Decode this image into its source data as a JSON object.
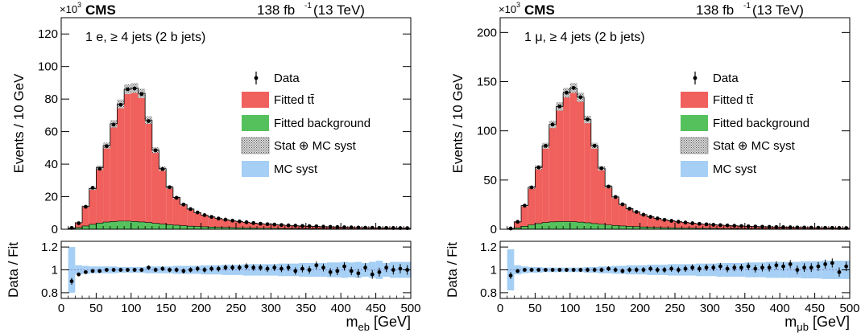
{
  "colors": {
    "signal": "#f0605c",
    "background": "#55c15c",
    "mc_syst": "#a5cff5",
    "stat_hatch": "#555555"
  },
  "chart_data": [
    {
      "type": "bar",
      "experiment": "CMS",
      "lumi": "138 fb",
      "lumi_sup": "-1",
      "energy": " (13 TeV)",
      "exponent_base": "×10",
      "exponent_sup": "3",
      "channel": "1 e, ≥ 4 jets (2 b jets)",
      "ylabel": "Events / 10 GeV",
      "ratio_ylabel": "Data / Fit",
      "xlabel_main": "m",
      "xlabel_sub": "eb",
      "xlabel_unit": " [GeV]",
      "xlim": [
        0,
        500
      ],
      "ylim": [
        0,
        130
      ],
      "yticks": [
        "0",
        "20",
        "40",
        "60",
        "80",
        "100",
        "120"
      ],
      "yticks_values": [
        0,
        20,
        40,
        60,
        80,
        100,
        120
      ],
      "xticks": [
        "0",
        "50",
        "100",
        "150",
        "200",
        "250",
        "300",
        "350",
        "400",
        "450",
        "500"
      ],
      "ratio_ylim": [
        0.75,
        1.25
      ],
      "ratio_yticks": [
        "0.8",
        "1",
        "1.2"
      ],
      "ratio_yticks_values": [
        0.8,
        1.0,
        1.2
      ],
      "legend": [
        "Data",
        "Fitted tt̄",
        "Fitted background",
        "Stat  ⊕ MC syst",
        "MC syst"
      ],
      "bin_low_edges": [
        0,
        10,
        20,
        30,
        40,
        50,
        60,
        70,
        80,
        90,
        100,
        110,
        120,
        130,
        140,
        150,
        160,
        170,
        180,
        190,
        200,
        210,
        220,
        230,
        240,
        250,
        260,
        270,
        280,
        290,
        300,
        310,
        320,
        330,
        340,
        350,
        360,
        370,
        380,
        390,
        400,
        410,
        420,
        430,
        440,
        450,
        460,
        470,
        480,
        490
      ],
      "signal": [
        0,
        0.5,
        3,
        12,
        22,
        34,
        47,
        60,
        72,
        81,
        82,
        79,
        63,
        45,
        34,
        23,
        17,
        13,
        10.5,
        8.5,
        7.2,
        6.2,
        5.4,
        4.8,
        4.2,
        3.8,
        3.4,
        3.0,
        2.7,
        2.5,
        2.25,
        2.05,
        1.85,
        1.7,
        1.55,
        1.45,
        1.35,
        1.25,
        1.15,
        1.05,
        0.98,
        0.9,
        0.84,
        0.78,
        0.72,
        0.66,
        0.62,
        0.58,
        0.55,
        0.52
      ],
      "background": [
        0,
        0.3,
        1.0,
        2.0,
        3.0,
        3.8,
        4.4,
        4.8,
        5.0,
        5.0,
        4.8,
        4.5,
        4.1,
        3.6,
        3.2,
        2.8,
        2.5,
        2.2,
        1.9,
        1.7,
        1.5,
        1.35,
        1.2,
        1.1,
        1.0,
        0.9,
        0.82,
        0.75,
        0.68,
        0.62,
        0.56,
        0.52,
        0.48,
        0.44,
        0.4,
        0.37,
        0.34,
        0.31,
        0.29,
        0.27,
        0.25,
        0.23,
        0.21,
        0.2,
        0.19,
        0.18,
        0.17,
        0.16,
        0.15,
        0.14
      ],
      "data": [
        null,
        0.8,
        3.7,
        13.8,
        25.5,
        37.2,
        51,
        64.3,
        76.5,
        86,
        86.5,
        83,
        66.5,
        48.5,
        37,
        25.8,
        19.3,
        15.2,
        12.4,
        10.3,
        8.7,
        7.6,
        6.6,
        5.9,
        5.3,
        4.8,
        4.3,
        3.8,
        3.4,
        3.1,
        2.9,
        2.6,
        2.4,
        2.2,
        2.0,
        1.9,
        1.8,
        1.6,
        1.5,
        1.35,
        1.25,
        1.15,
        1.05,
        0.98,
        0.92,
        0.86,
        0.82,
        0.78,
        0.73,
        0.68
      ],
      "ratio": [
        null,
        0.9,
        0.96,
        0.98,
        0.99,
        0.99,
        1.0,
        1.0,
        1.0,
        1.0,
        1.0,
        1.0,
        1.02,
        1.0,
        1.01,
        1.0,
        1.0,
        0.99,
        1.0,
        1.01,
        1.0,
        1.01,
        1.01,
        1.02,
        1.02,
        1.02,
        1.03,
        1.02,
        1.02,
        1.01,
        1.02,
        1.01,
        1.02,
        0.99,
        1.01,
        1.0,
        1.04,
        1.02,
        0.98,
        0.99,
        1.03,
        0.99,
        0.97,
        1.02,
        0.96,
        0.98,
        1.02,
        1.0,
        1.01,
        1.0
      ],
      "mc_syst_band": [
        0,
        0.2,
        0.04,
        0.035,
        0.03,
        0.03,
        0.03,
        0.03,
        0.025,
        0.025,
        0.025,
        0.025,
        0.03,
        0.03,
        0.03,
        0.03,
        0.035,
        0.035,
        0.035,
        0.035,
        0.04,
        0.04,
        0.04,
        0.045,
        0.045,
        0.045,
        0.05,
        0.05,
        0.05,
        0.05,
        0.05,
        0.055,
        0.055,
        0.055,
        0.06,
        0.06,
        0.06,
        0.06,
        0.065,
        0.065,
        0.07,
        0.065,
        0.07,
        0.06,
        0.07,
        0.08,
        0.06,
        0.07,
        0.07,
        0.07
      ]
    },
    {
      "type": "bar",
      "experiment": "CMS",
      "lumi": "138 fb",
      "lumi_sup": "-1",
      "energy": " (13 TeV)",
      "exponent_base": "×10",
      "exponent_sup": "3",
      "channel": "1 μ, ≥ 4 jets (2 b jets)",
      "ylabel": "Events / 10 GeV",
      "ratio_ylabel": "Data / Fit",
      "xlabel_main": "m",
      "xlabel_sub": "μb",
      "xlabel_unit": " [GeV]",
      "xlim": [
        0,
        500
      ],
      "ylim": [
        0,
        215
      ],
      "yticks": [
        "0",
        "50",
        "100",
        "150",
        "200"
      ],
      "yticks_values": [
        0,
        50,
        100,
        150,
        200
      ],
      "xticks": [
        "0",
        "50",
        "100",
        "150",
        "200",
        "250",
        "300",
        "350",
        "400",
        "450",
        "500"
      ],
      "ratio_ylim": [
        0.75,
        1.25
      ],
      "ratio_yticks": [
        "0.8",
        "1",
        "1.2"
      ],
      "ratio_yticks_values": [
        0.8,
        1.0,
        1.2
      ],
      "legend": [
        "Data",
        "Fitted tt̄",
        "Fitted background",
        "Stat  ⊕ MC syst",
        "MC syst"
      ],
      "bin_low_edges": [
        0,
        10,
        20,
        30,
        40,
        50,
        60,
        70,
        80,
        90,
        100,
        110,
        120,
        130,
        140,
        150,
        160,
        170,
        180,
        190,
        200,
        210,
        220,
        230,
        240,
        250,
        260,
        270,
        280,
        290,
        300,
        310,
        320,
        330,
        340,
        350,
        360,
        370,
        380,
        390,
        400,
        410,
        420,
        430,
        440,
        450,
        460,
        470,
        480,
        490
      ],
      "signal": [
        0,
        0.5,
        6,
        21,
        38,
        57,
        78,
        99,
        117,
        131,
        136,
        127,
        105,
        79,
        57,
        39,
        29,
        22,
        18,
        15,
        12.5,
        10.6,
        9.2,
        8.0,
        7.1,
        6.3,
        5.6,
        5.0,
        4.5,
        4.1,
        3.7,
        3.4,
        3.1,
        2.85,
        2.6,
        2.4,
        2.25,
        2.1,
        1.95,
        1.8,
        1.7,
        1.6,
        1.5,
        1.4,
        1.32,
        1.25,
        1.18,
        1.12,
        1.06,
        1.0
      ],
      "background": [
        0,
        0.3,
        1.5,
        3.0,
        4.5,
        5.8,
        6.8,
        7.5,
        7.8,
        7.8,
        7.6,
        7.2,
        6.6,
        5.8,
        5.0,
        4.4,
        3.8,
        3.3,
        2.9,
        2.6,
        2.3,
        2.0,
        1.8,
        1.6,
        1.45,
        1.3,
        1.2,
        1.1,
        1.0,
        0.9,
        0.85,
        0.78,
        0.72,
        0.66,
        0.6,
        0.56,
        0.52,
        0.48,
        0.45,
        0.42,
        0.4,
        0.38,
        0.36,
        0.34,
        0.32,
        0.3,
        0.28,
        0.27,
        0.26,
        0.25
      ],
      "data": [
        null,
        0.8,
        7.5,
        24,
        42.5,
        62.8,
        84.8,
        106.5,
        124.8,
        138.8,
        143.6,
        134.2,
        111.6,
        84.8,
        62,
        43.4,
        32.8,
        25.3,
        20.9,
        17.6,
        14.8,
        12.6,
        11.0,
        9.6,
        8.55,
        7.6,
        6.8,
        6.1,
        5.5,
        5.0,
        4.55,
        4.18,
        3.82,
        3.51,
        3.2,
        2.96,
        2.77,
        2.58,
        2.4,
        2.22,
        2.1,
        1.98,
        1.86,
        1.74,
        1.64,
        1.55,
        1.46,
        1.39,
        1.32,
        1.25
      ],
      "ratio": [
        null,
        0.95,
        0.99,
        1.0,
        1.0,
        1.0,
        1.0,
        1.0,
        1.0,
        1.0,
        1.0,
        1.0,
        1.0,
        1.0,
        1.0,
        1.01,
        1.0,
        0.99,
        1.0,
        1.0,
        1.0,
        1.01,
        1.0,
        1.0,
        1.01,
        1.0,
        1.01,
        1.02,
        1.01,
        1.02,
        1.02,
        1.03,
        1.01,
        1.02,
        1.02,
        1.03,
        1.01,
        1.02,
        1.02,
        1.04,
        1.03,
        1.05,
        1.0,
        1.02,
        1.02,
        1.03,
        1.05,
        1.06,
        0.98,
        1.03
      ],
      "mc_syst_band": [
        0,
        0.18,
        0.04,
        0.03,
        0.025,
        0.025,
        0.02,
        0.02,
        0.02,
        0.02,
        0.02,
        0.02,
        0.025,
        0.025,
        0.03,
        0.03,
        0.035,
        0.035,
        0.04,
        0.04,
        0.04,
        0.045,
        0.045,
        0.045,
        0.05,
        0.05,
        0.05,
        0.05,
        0.055,
        0.055,
        0.055,
        0.06,
        0.06,
        0.06,
        0.06,
        0.065,
        0.065,
        0.065,
        0.07,
        0.07,
        0.07,
        0.07,
        0.07,
        0.075,
        0.075,
        0.075,
        0.08,
        0.08,
        0.08,
        0.08
      ]
    }
  ]
}
